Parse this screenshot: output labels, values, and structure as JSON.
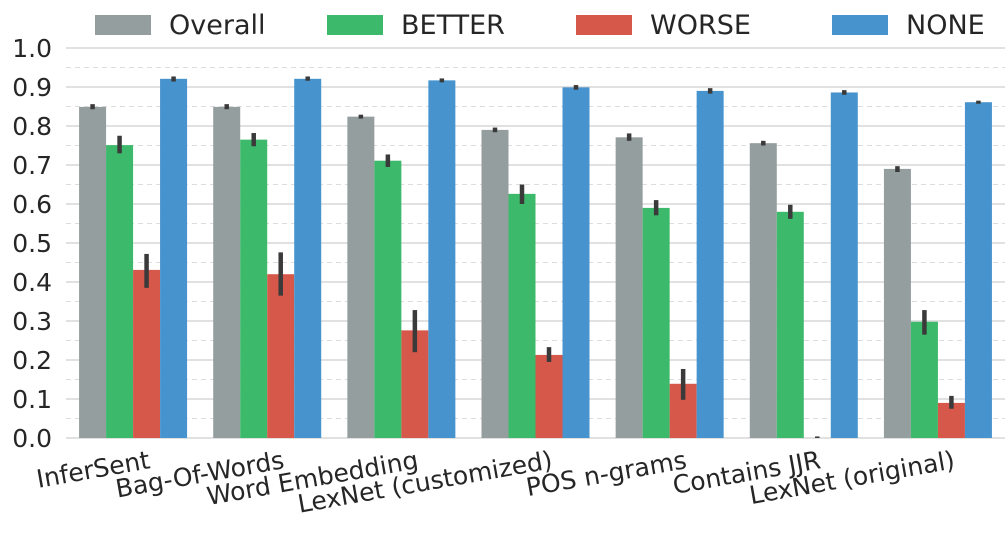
{
  "chart_data": {
    "type": "bar",
    "title": "",
    "xlabel": "",
    "ylabel": "",
    "ylim": [
      0,
      1.0
    ],
    "yticks": [
      "0.0",
      "0.1",
      "0.2",
      "0.3",
      "0.4",
      "0.5",
      "0.6",
      "0.7",
      "0.8",
      "0.9",
      "1.0"
    ],
    "grid": true,
    "legend_position": "top",
    "categories": [
      "InferSent",
      "Bag-Of-Words",
      "Word Embedding",
      "LexNet (customized)",
      "POS n-grams",
      "Contains JJR",
      "LexNet (original)"
    ],
    "series": [
      {
        "name": "Overall",
        "color": "#959e9f",
        "values": [
          0.849,
          0.849,
          0.824,
          0.79,
          0.771,
          0.756,
          0.69
        ],
        "err_low": [
          0.843,
          0.843,
          0.819,
          0.784,
          0.762,
          0.75,
          0.682
        ],
        "err_high": [
          0.856,
          0.856,
          0.829,
          0.796,
          0.781,
          0.762,
          0.697
        ]
      },
      {
        "name": "BETTER",
        "color": "#3cb96a",
        "values": [
          0.751,
          0.765,
          0.711,
          0.626,
          0.59,
          0.58,
          0.298
        ],
        "err_low": [
          0.73,
          0.748,
          0.695,
          0.6,
          0.571,
          0.562,
          0.265
        ],
        "err_high": [
          0.775,
          0.782,
          0.727,
          0.65,
          0.61,
          0.598,
          0.328
        ]
      },
      {
        "name": "WORSE",
        "color": "#d6584b",
        "values": [
          0.431,
          0.42,
          0.276,
          0.213,
          0.139,
          0.0,
          0.09
        ],
        "err_low": [
          0.385,
          0.365,
          0.22,
          0.195,
          0.098,
          0.0,
          0.075
        ],
        "err_high": [
          0.472,
          0.476,
          0.328,
          0.233,
          0.177,
          0.004,
          0.108
        ]
      },
      {
        "name": "NONE",
        "color": "#4793cd",
        "values": [
          0.921,
          0.921,
          0.917,
          0.899,
          0.89,
          0.886,
          0.861
        ],
        "err_low": [
          0.914,
          0.916,
          0.912,
          0.893,
          0.883,
          0.88,
          0.857
        ],
        "err_high": [
          0.927,
          0.927,
          0.922,
          0.905,
          0.897,
          0.892,
          0.865
        ]
      }
    ]
  }
}
